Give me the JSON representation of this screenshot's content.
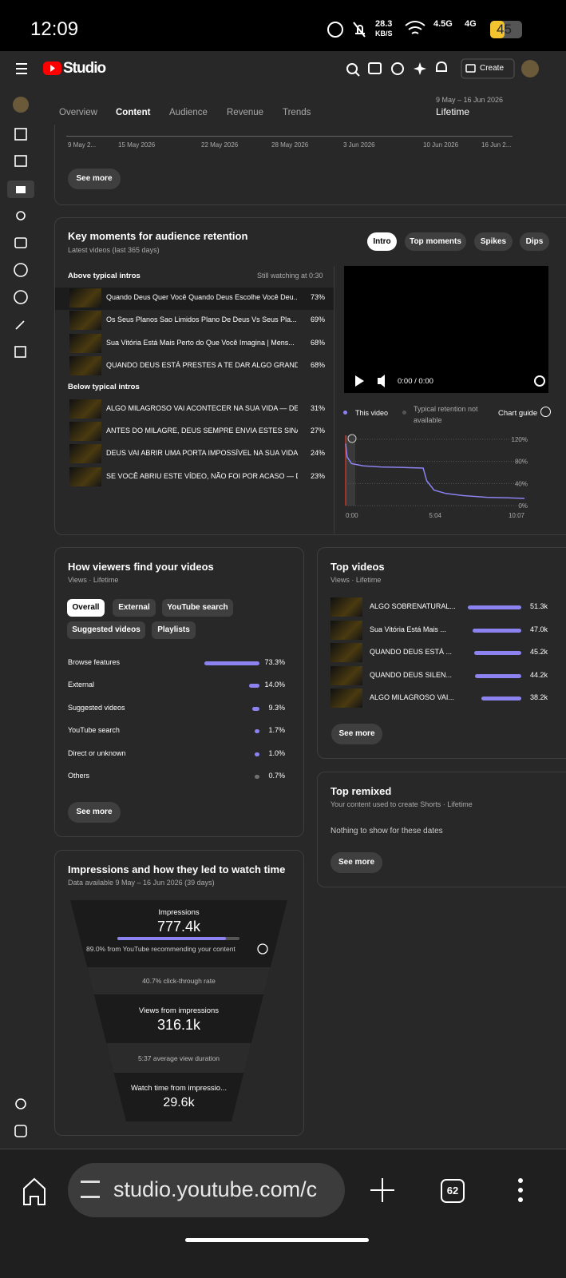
{
  "status_bar": {
    "time": "12:09",
    "net_speed": "28.3",
    "net_unit": "KB/S",
    "signal_1": "4.5G",
    "signal_2": "4G",
    "battery": "45"
  },
  "app_bar": {
    "brand": "Studio",
    "create": "Create"
  },
  "tabs": {
    "items": [
      "Overview",
      "Content",
      "Audience",
      "Revenue",
      "Trends"
    ],
    "active": 1
  },
  "date_range": {
    "range": "9 May – 16 Jun 2026",
    "period": "Lifetime"
  },
  "views_chart": {
    "x_labels": [
      "9 May 2...",
      "15 May 2026",
      "22 May 2026",
      "28 May 2026",
      "3 Jun 2026",
      "10 Jun 2026",
      "16 Jun 2..."
    ],
    "see_more": "See more"
  },
  "retention": {
    "title": "Key moments for audience retention",
    "subtitle": "Latest videos (last 365 days)",
    "buttons": [
      "Intro",
      "Top moments",
      "Spikes",
      "Dips"
    ],
    "active_button": 0,
    "above_header": "Above typical intros",
    "still_watching": "Still watching at 0:30",
    "above": [
      {
        "title": "Quando Deus Quer Você Quando Deus Escolhe Você Deu...",
        "pct": "73%"
      },
      {
        "title": "Os Seus Planos Sao Limidos Plano De Deus Vs Seus Pla...",
        "pct": "69%"
      },
      {
        "title": "Sua Vitória Está Mais Perto do Que Você Imagina | Mens...",
        "pct": "68%"
      },
      {
        "title": "QUANDO DEUS ESTÁ PRESTES A TE DAR ALGO GRANDE...",
        "pct": "68%"
      }
    ],
    "below_header": "Below typical intros",
    "below": [
      {
        "title": "ALGO MILAGROSO VAI ACONTECER NA SUA VIDA — DE...",
        "pct": "31%"
      },
      {
        "title": "ANTES DO MILAGRE, DEUS SEMPRE ENVIA ESTES SINAI...",
        "pct": "27%"
      },
      {
        "title": "DEUS VAI ABRIR UMA PORTA IMPOSSÍVEL NA SUA VIDA",
        "pct": "24%"
      },
      {
        "title": "SE VOCÊ ABRIU ESTE VÍDEO, NÃO FOI POR ACASO — DE...",
        "pct": "23%"
      }
    ],
    "player_time": "0:00 / 0:00",
    "legend_this": "This video",
    "legend_typical": "Typical retention not available",
    "chart_guide": "Chart guide",
    "chart": {
      "type": "line",
      "x": [
        0,
        5,
        20,
        60,
        120,
        200,
        263,
        275,
        300,
        340,
        400,
        480,
        550,
        607
      ],
      "series": [
        {
          "name": "This video",
          "color": "#8c82f0",
          "values": [
            112,
            88,
            76,
            72,
            70,
            69,
            68,
            45,
            28,
            22,
            18,
            15,
            14,
            13
          ]
        }
      ],
      "xlim": [
        0,
        607
      ],
      "xticks": [
        {
          "value": 0,
          "label": "0:00"
        },
        {
          "value": 304,
          "label": "5:04"
        },
        {
          "value": 607,
          "label": "10:07"
        }
      ],
      "ylim": [
        0,
        120
      ],
      "yticks": [
        {
          "value": 120,
          "label": "120%"
        },
        {
          "value": 80,
          "label": "80%"
        },
        {
          "value": 40,
          "label": "40%"
        },
        {
          "value": 0,
          "label": "0%"
        }
      ],
      "grid": true
    }
  },
  "traffic": {
    "title": "How viewers find your videos",
    "subtitle": "Views · Lifetime",
    "chips": [
      "Overall",
      "External",
      "YouTube search",
      "Suggested videos",
      "Playlists"
    ],
    "active_chip": 0,
    "bar_color": "#8c82f0",
    "rows": [
      {
        "label": "Browse features",
        "value": 73.3,
        "value_label": "73.3%"
      },
      {
        "label": "External",
        "value": 14.0,
        "value_label": "14.0%"
      },
      {
        "label": "Suggested videos",
        "value": 9.3,
        "value_label": "9.3%"
      },
      {
        "label": "YouTube search",
        "value": 1.7,
        "value_label": "1.7%"
      },
      {
        "label": "Direct or unknown",
        "value": 1.0,
        "value_label": "1.0%"
      },
      {
        "label": "Others",
        "value": 0.7,
        "value_label": "0.7%",
        "color": "#717171"
      }
    ],
    "see_more": "See more"
  },
  "top_videos": {
    "title": "Top videos",
    "subtitle": "Views · Lifetime",
    "bar_color": "#8c82f0",
    "rows": [
      {
        "title": "ALGO SOBRENATURAL...",
        "value": 51300,
        "value_label": "51.3k"
      },
      {
        "title": "Sua Vitória Está Mais ...",
        "value": 47000,
        "value_label": "47.0k"
      },
      {
        "title": "QUANDO DEUS ESTÁ ...",
        "value": 45200,
        "value_label": "45.2k"
      },
      {
        "title": "QUANDO DEUS SILEN...",
        "value": 44200,
        "value_label": "44.2k"
      },
      {
        "title": "ALGO MILAGROSO VAI...",
        "value": 38200,
        "value_label": "38.2k"
      }
    ],
    "see_more": "See more"
  },
  "top_remixed": {
    "title": "Top remixed",
    "subtitle": "Your content used to create Shorts · Lifetime",
    "empty": "Nothing to show for these dates",
    "see_more": "See more"
  },
  "impressions": {
    "title": "Impressions and how they led to watch time",
    "subtitle": "Data available 9 May – 16 Jun 2026 (39 days)",
    "impressions_label": "Impressions",
    "impressions_value": "777.4k",
    "recommended_share": 89.0,
    "recommended_text": "89.0% from YouTube recommending your content",
    "ctr_text": "40.7% click-through rate",
    "views_label": "Views from impressions",
    "views_value": "316.1k",
    "avd_text": "5:37 average view duration",
    "watch_label": "Watch time from impressio...",
    "watch_value": "29.6k"
  },
  "browser": {
    "url": "studio.youtube.com/c",
    "tab_count": "62"
  }
}
